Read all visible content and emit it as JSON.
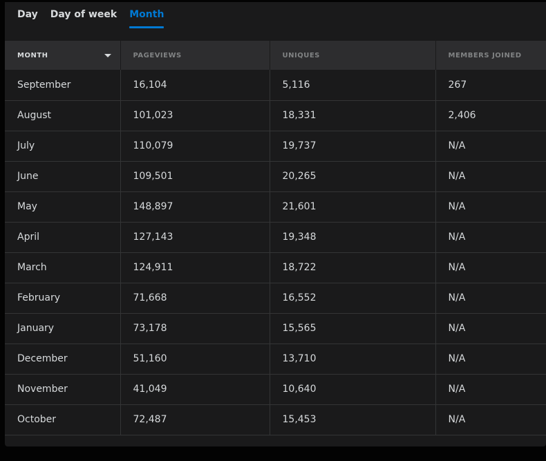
{
  "tabs": [
    {
      "label": "Day",
      "active": false
    },
    {
      "label": "Day of week",
      "active": false
    },
    {
      "label": "Month",
      "active": true
    }
  ],
  "accent_color": "#0079d3",
  "table": {
    "headers": [
      "MONTH",
      "PAGEVIEWS",
      "UNIQUES",
      "MEMBERS JOINED"
    ],
    "sort": {
      "column": "MONTH",
      "direction": "descending",
      "icon": "caret-down-icon"
    },
    "rows": [
      [
        "September",
        "16,104",
        "5,116",
        "267"
      ],
      [
        "August",
        "101,023",
        "18,331",
        "2,406"
      ],
      [
        "July",
        "110,079",
        "19,737",
        "N/A"
      ],
      [
        "June",
        "109,501",
        "20,265",
        "N/A"
      ],
      [
        "May",
        "148,897",
        "21,601",
        "N/A"
      ],
      [
        "April",
        "127,143",
        "19,348",
        "N/A"
      ],
      [
        "March",
        "124,911",
        "18,722",
        "N/A"
      ],
      [
        "February",
        "71,668",
        "16,552",
        "N/A"
      ],
      [
        "January",
        "73,178",
        "15,565",
        "N/A"
      ],
      [
        "December",
        "51,160",
        "13,710",
        "N/A"
      ],
      [
        "November",
        "41,049",
        "10,640",
        "N/A"
      ],
      [
        "October",
        "72,487",
        "15,453",
        "N/A"
      ]
    ]
  }
}
